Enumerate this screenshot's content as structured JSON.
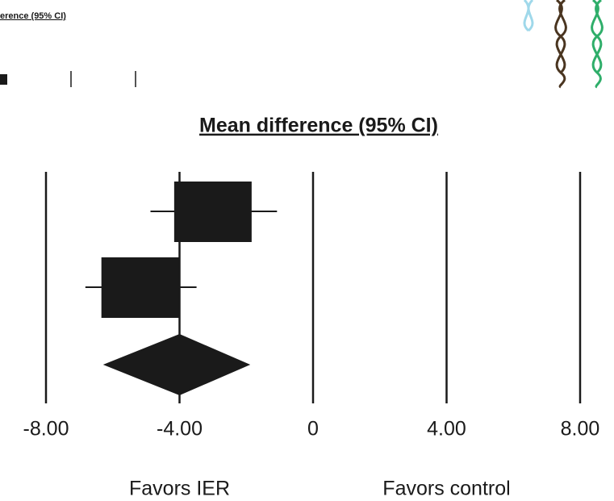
{
  "cropped_header": {
    "text": "erence (95% CI)"
  },
  "chart_data": {
    "type": "forest",
    "title": "Mean difference (95% CI)",
    "studies": [
      {
        "estimate": -3.0,
        "lower": -4.87,
        "upper": -1.08
      },
      {
        "estimate": -5.18,
        "lower": -6.82,
        "upper": -3.49
      }
    ],
    "pooled": {
      "estimate": -4.0,
      "lower": -6.29,
      "upper": -1.88
    },
    "xlim": [
      -8,
      8
    ],
    "xticks": [
      {
        "value": -8,
        "label": "-8.00"
      },
      {
        "value": -4,
        "label": "-4.00"
      },
      0,
      {
        "value": 4,
        "label": "4.00"
      },
      {
        "value": 8,
        "label": "8.00"
      }
    ],
    "grid": true,
    "favors_left": "Favors IER",
    "favors_right": "Favors control",
    "color": "#1a1a1a"
  }
}
